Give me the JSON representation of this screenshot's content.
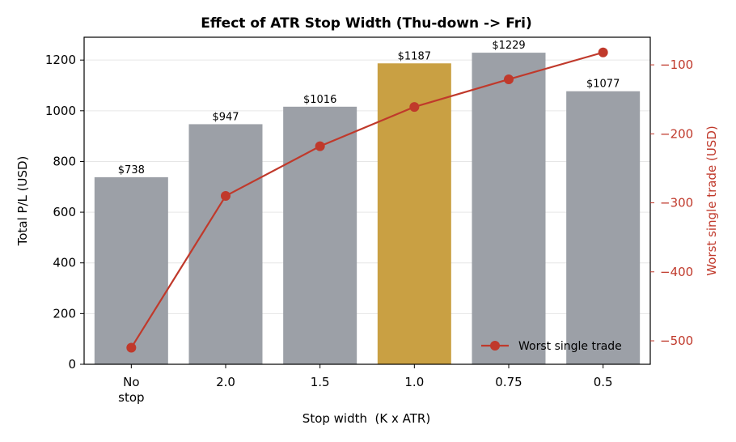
{
  "chart_data": {
    "type": "bar",
    "title": "Effect of ATR Stop Width (Thu-down -> Fri)",
    "xlabel": "Stop width  (K x ATR)",
    "ylabel": "Total P/L (USD)",
    "y2label": "Worst single trade (USD)",
    "categories": [
      [
        "No",
        "stop"
      ],
      [
        "2.0"
      ],
      [
        "1.5"
      ],
      [
        "1.0"
      ],
      [
        "0.75"
      ],
      [
        "0.5"
      ]
    ],
    "bar_series": {
      "values": [
        738,
        947,
        1016,
        1187,
        1229,
        1077
      ],
      "data_labels": [
        "$738",
        "$947",
        "$1016",
        "$1187",
        "$1229",
        "$1077"
      ],
      "highlight_index": 3
    },
    "line_series": {
      "name": "Worst single trade",
      "values": [
        -510,
        -290,
        -218,
        -161,
        -121,
        -82
      ]
    },
    "ylim": [
      0,
      1290
    ],
    "y2lim": [
      -534,
      -60
    ],
    "yticks": [
      0,
      200,
      400,
      600,
      800,
      1000,
      1200
    ],
    "y2ticks": [
      -100,
      -200,
      -300,
      -400,
      -500
    ],
    "y2tick_labels": [
      "−100",
      "−200",
      "−300",
      "−400",
      "−500"
    ],
    "grid": "horizontal",
    "legend_position": "lower-right",
    "colors": {
      "bar": "#9ca0a7",
      "highlight_bar": "#c9a043",
      "line": "#c0392b",
      "grid": "#e6e6e6"
    }
  }
}
